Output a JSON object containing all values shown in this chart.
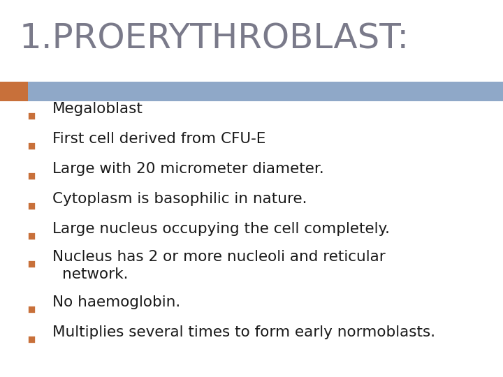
{
  "title": "1.PROERYTHROBLAST:",
  "title_color": "#7a7a8a",
  "title_fontsize": 36,
  "header_bar_color": "#8fa8c8",
  "header_bar_accent_color": "#c8703a",
  "bullet_items": [
    "Megaloblast",
    "First cell derived from CFU-E",
    "Large with 20 micrometer diameter.",
    "Cytoplasm is basophilic in nature.",
    "Large nucleus occupying the cell completely.",
    "Nucleus has 2 or more nucleoli and reticular",
    "network.",
    "No haemoglobin.",
    "Multiplies several times to form early normoblasts."
  ],
  "bullet_flags": [
    true,
    true,
    true,
    true,
    true,
    true,
    false,
    true,
    true
  ],
  "bullet_color": "#c8703a",
  "text_color": "#1a1a1a",
  "bullet_fontsize": 15.5,
  "background_color": "#ffffff"
}
